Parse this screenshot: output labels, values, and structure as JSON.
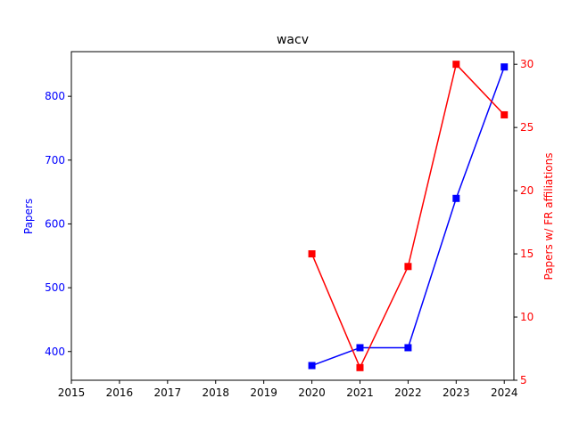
{
  "chart_data": {
    "type": "line",
    "title": "wacv",
    "xlabel": "",
    "ylabel_left": "Papers",
    "ylabel_right": "Papers w/ FR affiliations",
    "x_ticks": [
      "2015",
      "2016",
      "2017",
      "2018",
      "2019",
      "2020",
      "2021",
      "2022",
      "2023",
      "2024"
    ],
    "xlim": [
      2015,
      2024.2
    ],
    "ylim_left": [
      355,
      870
    ],
    "ylim_right": [
      5,
      31
    ],
    "yticks_left": [
      400,
      500,
      600,
      700,
      800
    ],
    "yticks_right": [
      5,
      10,
      15,
      20,
      25,
      30
    ],
    "grid": false,
    "series": [
      {
        "axis": "left",
        "color": "#0000ff",
        "marker": "square",
        "x": [
          2020,
          2021,
          2022,
          2023,
          2024
        ],
        "values": [
          378,
          406,
          406,
          640,
          846
        ]
      },
      {
        "axis": "right",
        "color": "#ff0000",
        "marker": "square",
        "x": [
          2020,
          2021,
          2022,
          2023,
          2024
        ],
        "values": [
          15,
          6,
          14,
          30,
          26
        ]
      }
    ]
  }
}
